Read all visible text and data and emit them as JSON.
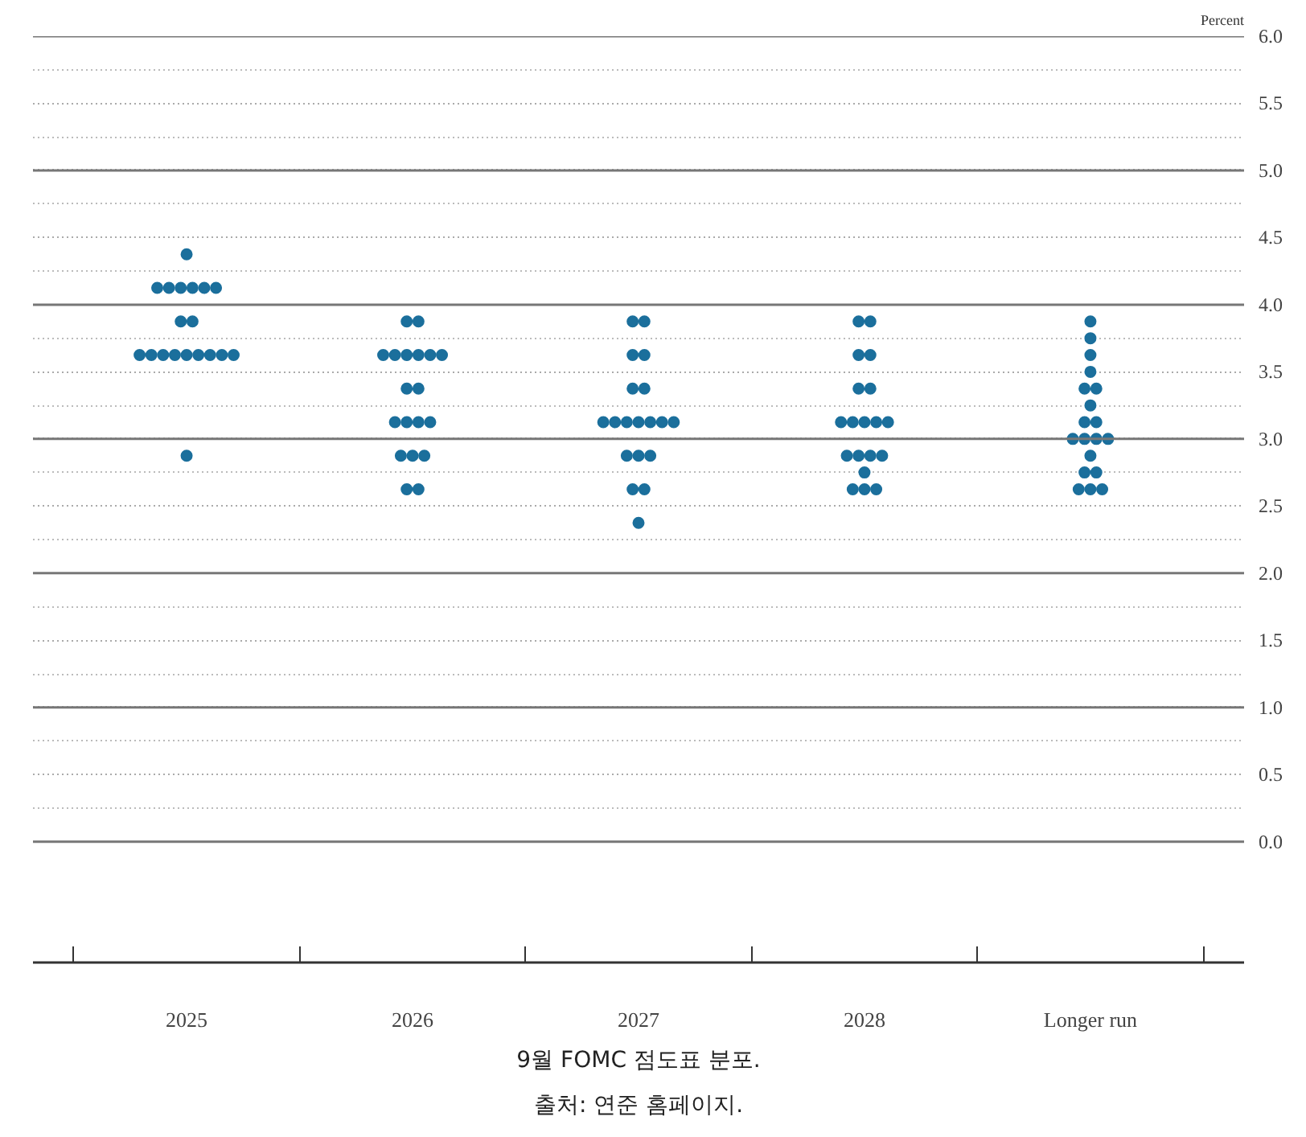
{
  "chart_data": {
    "type": "scatter",
    "ylabel": "Percent",
    "categories": [
      "2025",
      "2026",
      "2027",
      "2028",
      "Longer run"
    ],
    "series": [
      {
        "color": "#1b6f9c",
        "values": [
          4.375,
          3.875,
          3.875,
          3.875,
          3.875
        ]
      },
      {
        "color": "#1b6f9c",
        "values": [
          4.125,
          3.875,
          3.875,
          3.875,
          3.75
        ]
      },
      {
        "color": "#1b6f9c",
        "values": [
          4.125,
          3.625,
          3.625,
          3.625,
          3.625
        ]
      },
      {
        "color": "#1b6f9c",
        "values": [
          4.125,
          3.625,
          3.625,
          3.625,
          3.5
        ]
      },
      {
        "color": "#1b6f9c",
        "values": [
          4.125,
          3.625,
          3.375,
          3.375,
          3.375
        ]
      },
      {
        "color": "#1b6f9c",
        "values": [
          4.125,
          3.625,
          3.375,
          3.375,
          3.375
        ]
      },
      {
        "color": "#1b6f9c",
        "values": [
          4.125,
          3.625,
          3.125,
          3.125,
          3.25
        ]
      },
      {
        "color": "#1b6f9c",
        "values": [
          3.875,
          3.625,
          3.125,
          3.125,
          3.125
        ]
      },
      {
        "color": "#1b6f9c",
        "values": [
          3.875,
          3.375,
          3.125,
          3.125,
          3.125
        ]
      },
      {
        "color": "#1b6f9c",
        "values": [
          3.625,
          3.375,
          3.125,
          3.125,
          3.0
        ]
      },
      {
        "color": "#1b6f9c",
        "values": [
          3.625,
          3.125,
          3.125,
          3.125,
          3.0
        ]
      },
      {
        "color": "#1b6f9c",
        "values": [
          3.625,
          3.125,
          3.125,
          2.875,
          3.0
        ]
      },
      {
        "color": "#1b6f9c",
        "values": [
          3.625,
          3.125,
          3.125,
          2.875,
          3.0
        ]
      },
      {
        "color": "#1b6f9c",
        "values": [
          3.625,
          3.125,
          2.875,
          2.875,
          2.875
        ]
      },
      {
        "color": "#1b6f9c",
        "values": [
          3.625,
          2.875,
          2.875,
          2.875,
          2.75
        ]
      },
      {
        "color": "#1b6f9c",
        "values": [
          3.625,
          2.875,
          2.875,
          2.75,
          2.75
        ]
      },
      {
        "color": "#1b6f9c",
        "values": [
          3.625,
          2.875,
          2.625,
          2.625,
          2.625
        ]
      },
      {
        "color": "#1b6f9c",
        "values": [
          3.625,
          2.625,
          2.625,
          2.625,
          2.625
        ]
      },
      {
        "color": "#1b6f9c",
        "values": [
          2.875,
          2.625,
          2.375,
          2.625,
          2.625
        ]
      }
    ],
    "ylim": [
      -0.9,
      6.0
    ],
    "yticks": [
      {
        "value": 0,
        "label": "0.0"
      },
      0.5,
      {
        "value": 1,
        "label": "1.0"
      },
      1.5,
      {
        "value": 2,
        "label": "2.0"
      },
      2.5,
      {
        "value": 3,
        "label": "3.0"
      },
      3.5,
      {
        "value": 4,
        "label": "4.0"
      },
      4.5,
      {
        "value": 5,
        "label": "5.0"
      },
      5.5,
      {
        "value": 6,
        "label": "6.0"
      }
    ],
    "grid": "y",
    "marker": "circle",
    "annotations": [
      "9월 FOMC 점도표 분포.",
      "출처: 연준 홈페이지."
    ]
  }
}
